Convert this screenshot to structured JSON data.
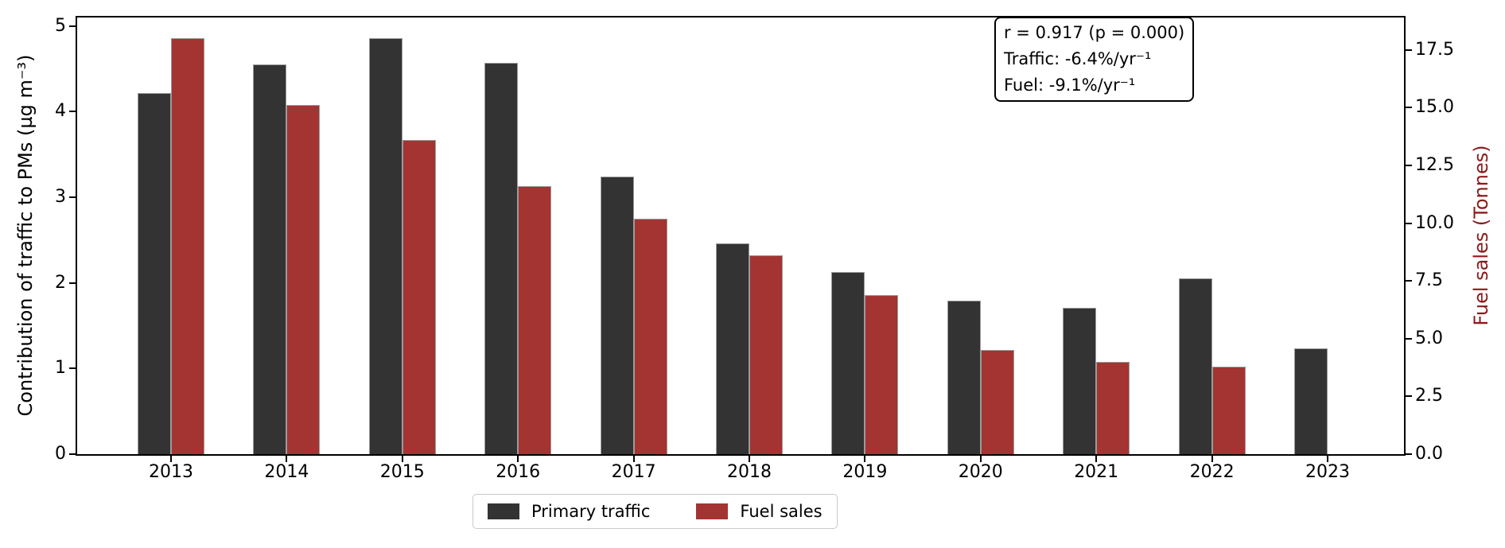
{
  "chart_data": {
    "type": "bar",
    "title": "",
    "categories": [
      "2013",
      "2014",
      "2015",
      "2016",
      "2017",
      "2018",
      "2019",
      "2020",
      "2021",
      "2022",
      "2023"
    ],
    "series": [
      {
        "name": "Primary traffic",
        "axis": "left",
        "color": "#333333",
        "values": [
          4.22,
          4.55,
          4.86,
          4.57,
          3.24,
          2.46,
          2.13,
          1.79,
          1.71,
          2.05,
          1.24
        ]
      },
      {
        "name": "Fuel sales",
        "axis": "right",
        "color": "#a33432",
        "values": [
          18.0,
          15.1,
          13.6,
          11.6,
          10.2,
          8.6,
          6.9,
          4.5,
          4.0,
          3.8,
          null
        ]
      }
    ],
    "xlabel": "",
    "ylabel_left": "Contribution of traffic to PMs (µg m⁻³)",
    "ylabel_right": "Fuel sales (Tonnes)",
    "ylabel_right_color": "#8b1a1a",
    "ylim_left": [
      0,
      5.1
    ],
    "ylim_right": [
      0,
      18.9
    ],
    "yticks_left": [
      "0",
      "1",
      "2",
      "3",
      "4",
      "5"
    ],
    "ytick_values_left": [
      0,
      1,
      2,
      3,
      4,
      5
    ],
    "yticks_right": [
      "0.0",
      "2.5",
      "5.0",
      "7.5",
      "10.0",
      "12.5",
      "15.0",
      "17.5"
    ],
    "ytick_values_right": [
      0,
      2.5,
      5,
      7.5,
      10,
      12.5,
      15,
      17.5
    ],
    "grid": false,
    "legend_position": "bottom-center",
    "annotation": {
      "lines": [
        "r = 0.917 (p = 0.000)",
        "Traffic: -6.4%/yr⁻¹",
        "Fuel: -9.1%/yr⁻¹"
      ]
    }
  }
}
